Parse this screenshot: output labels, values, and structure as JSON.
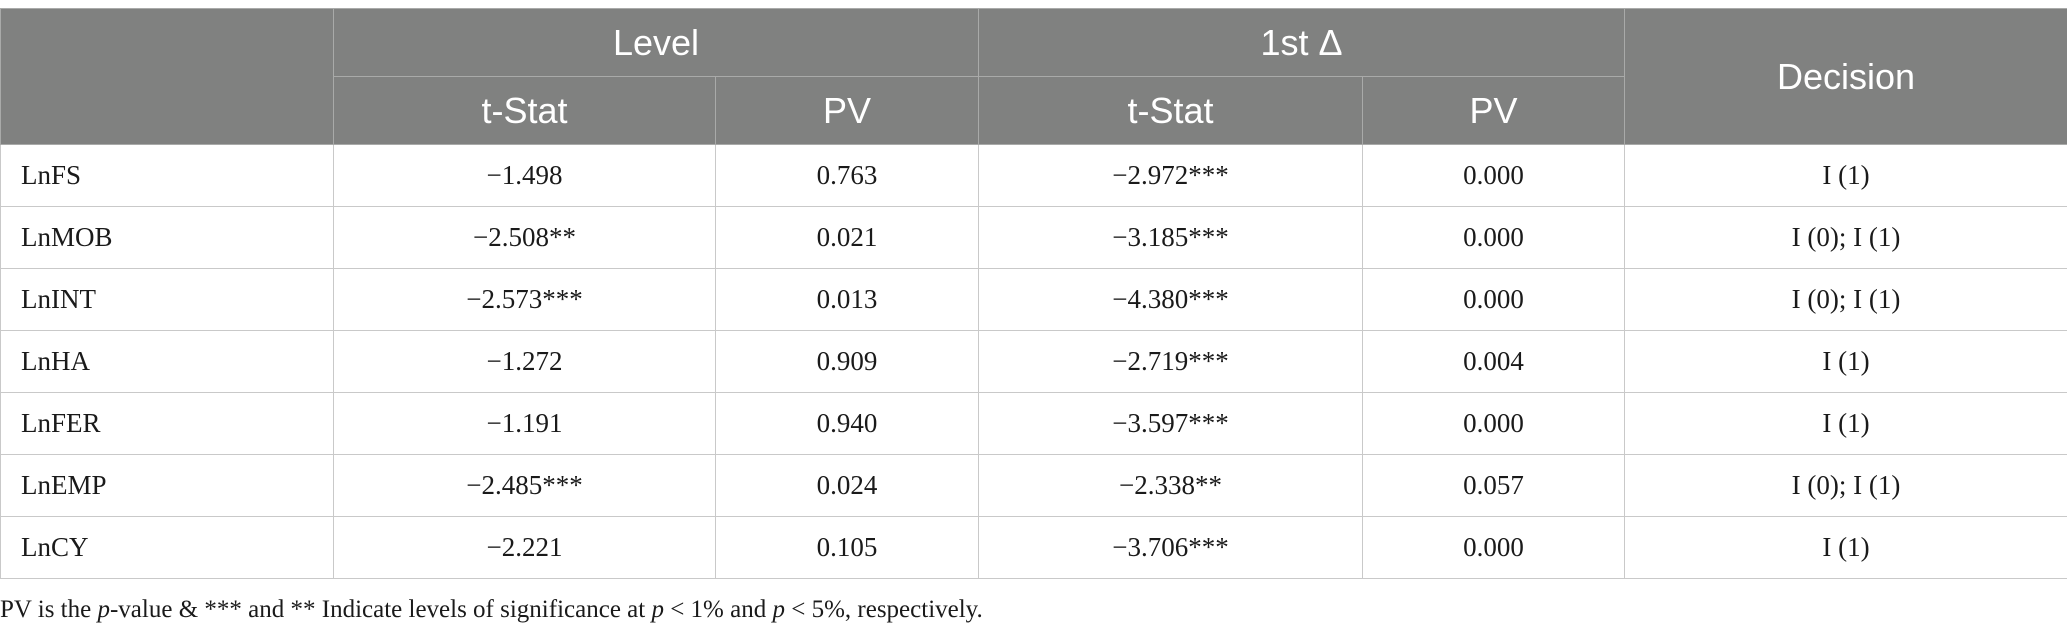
{
  "table": {
    "header": {
      "group_level": "Level",
      "group_first_diff": "1st Δ",
      "decision": "Decision",
      "sub_tstat_level": "t-Stat",
      "sub_pv_level": "PV",
      "sub_tstat_diff": "t-Stat",
      "sub_pv_diff": "PV"
    },
    "rows": [
      {
        "variable": "LnFS",
        "level_tstat": "−1.498",
        "level_pv": "0.763",
        "diff_tstat": "−2.972***",
        "diff_pv": "0.000",
        "decision": "I (1)"
      },
      {
        "variable": "LnMOB",
        "level_tstat": "−2.508**",
        "level_pv": "0.021",
        "diff_tstat": "−3.185***",
        "diff_pv": "0.000",
        "decision": "I (0); I (1)"
      },
      {
        "variable": "LnINT",
        "level_tstat": "−2.573***",
        "level_pv": "0.013",
        "diff_tstat": "−4.380***",
        "diff_pv": "0.000",
        "decision": "I (0); I (1)"
      },
      {
        "variable": "LnHA",
        "level_tstat": "−1.272",
        "level_pv": "0.909",
        "diff_tstat": "−2.719***",
        "diff_pv": "0.004",
        "decision": "I (1)"
      },
      {
        "variable": "LnFER",
        "level_tstat": "−1.191",
        "level_pv": "0.940",
        "diff_tstat": "−3.597***",
        "diff_pv": "0.000",
        "decision": "I (1)"
      },
      {
        "variable": "LnEMP",
        "level_tstat": "−2.485***",
        "level_pv": "0.024",
        "diff_tstat": "−2.338**",
        "diff_pv": "0.057",
        "decision": "I (0); I (1)"
      },
      {
        "variable": "LnCY",
        "level_tstat": "−2.221",
        "level_pv": "0.105",
        "diff_tstat": "−3.706***",
        "diff_pv": "0.000",
        "decision": "I (1)"
      }
    ]
  },
  "footnote": {
    "part1": "PV is the ",
    "p1": "p",
    "part2": "-value & *** and ** Indicate levels of significance at ",
    "p2": "p",
    "part3": " < 1% and ",
    "p3": "p",
    "part4": " < 5%, respectively."
  },
  "colors": {
    "header_bg": "#808180",
    "header_text": "#ffffff",
    "grid": "#c9c9c9"
  }
}
